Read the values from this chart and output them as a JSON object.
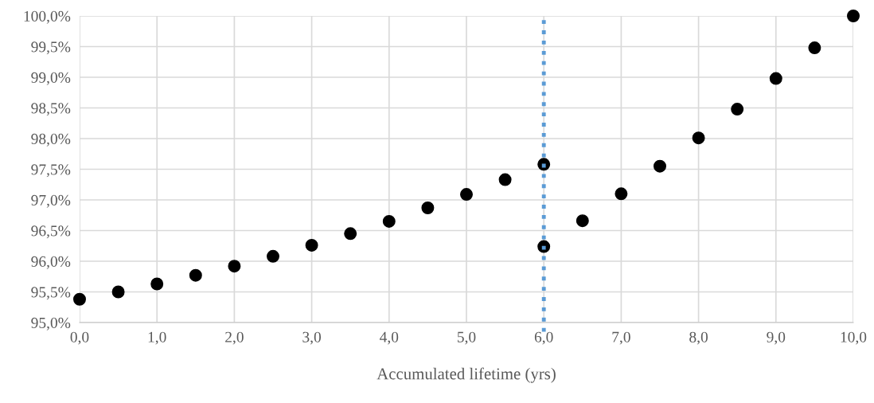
{
  "chart_data": {
    "type": "scatter",
    "xlabel": "Accumulated lifetime (yrs)",
    "x": [
      0,
      0.5,
      1,
      1.5,
      2,
      2.5,
      3,
      3.5,
      4,
      4.5,
      5,
      5.5,
      6,
      6,
      6.5,
      7,
      7.5,
      8,
      8.5,
      9,
      9.5,
      10
    ],
    "series": [
      {
        "color": "#000000",
        "values": [
          95.38,
          95.5,
          95.63,
          95.77,
          95.92,
          96.08,
          96.26,
          96.45,
          96.65,
          96.87,
          97.09,
          97.33,
          97.58,
          96.24,
          96.66,
          97.1,
          97.55,
          98.01,
          98.48,
          98.98,
          99.48,
          100.0
        ]
      }
    ],
    "marker": "circle",
    "xlim": [
      0,
      10
    ],
    "ylim": [
      95,
      100
    ],
    "xticks": [
      {
        "value": 0,
        "label": "0,0"
      },
      {
        "value": 1,
        "label": "1,0"
      },
      {
        "value": 2,
        "label": "2,0"
      },
      {
        "value": 3,
        "label": "3,0"
      },
      {
        "value": 4,
        "label": "4,0"
      },
      {
        "value": 5,
        "label": "5,0"
      },
      {
        "value": 6,
        "label": "6,0"
      },
      {
        "value": 7,
        "label": "7,0"
      },
      {
        "value": 8,
        "label": "8,0"
      },
      {
        "value": 9,
        "label": "9,0"
      },
      {
        "value": 10,
        "label": "10,0"
      }
    ],
    "yticks": [
      {
        "value": 95,
        "label": "95,0%"
      },
      {
        "value": 95.5,
        "label": "95,5%"
      },
      {
        "value": 96,
        "label": "96,0%"
      },
      {
        "value": 96.5,
        "label": "96,5%"
      },
      {
        "value": 97,
        "label": "97,0%"
      },
      {
        "value": 97.5,
        "label": "97,5%"
      },
      {
        "value": 98,
        "label": "98,0%"
      },
      {
        "value": 98.5,
        "label": "98,5%"
      },
      {
        "value": 99,
        "label": "99,0%"
      },
      {
        "value": 99.5,
        "label": "99,5%"
      },
      {
        "value": 100,
        "label": "100,0%"
      }
    ],
    "grid": true,
    "ref_lines": [
      {
        "axis": "x",
        "value": 6,
        "color": "#5b9bd5",
        "line_style": "dotted"
      }
    ]
  }
}
